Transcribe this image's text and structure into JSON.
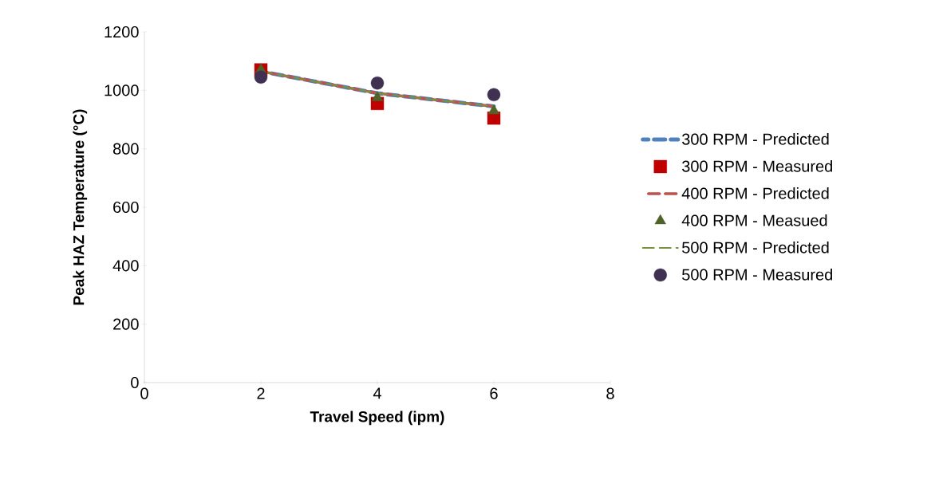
{
  "chart_data": {
    "type": "scatter",
    "xlabel": "Travel Speed (ipm)",
    "ylabel": "Peak HAZ Temperature (°C)",
    "xlim": [
      0,
      8
    ],
    "ylim": [
      0,
      1200
    ],
    "xticks": [
      0,
      2,
      4,
      6,
      8
    ],
    "yticks": [
      0,
      200,
      400,
      600,
      800,
      1000,
      1200
    ],
    "grid": false,
    "legend": "right",
    "series": [
      {
        "name": "300 RPM - Predicted",
        "type": "line",
        "line_style": "dashed",
        "marker": "none",
        "color": "#4f81bd",
        "x": [
          2,
          4,
          6
        ],
        "values": [
          1065,
          990,
          945
        ]
      },
      {
        "name": "300 RPM - Measured",
        "marker": "square",
        "color": "#c00000",
        "x": [
          2,
          4,
          6
        ],
        "values": [
          1070,
          955,
          905
        ]
      },
      {
        "name": "400 RPM - Predicted",
        "type": "line",
        "line_style": "dashed",
        "marker": "none",
        "color": "#c0504d",
        "x": [
          2,
          4,
          6
        ],
        "values": [
          1065,
          990,
          945
        ]
      },
      {
        "name": "400 RPM - Measued",
        "marker": "triangle",
        "color": "#4f6228",
        "x": [
          2,
          4,
          6
        ],
        "values": [
          1070,
          975,
          930
        ]
      },
      {
        "name": "500 RPM - Predicted",
        "type": "line",
        "line_style": "dashed",
        "marker": "none",
        "color": "#77933c",
        "x": [
          2,
          4,
          6
        ],
        "values": [
          1065,
          990,
          945
        ]
      },
      {
        "name": "500 RPM - Measured",
        "marker": "circle",
        "color": "#403152",
        "x": [
          2,
          4,
          6
        ],
        "values": [
          1045,
          1025,
          985
        ]
      }
    ]
  }
}
